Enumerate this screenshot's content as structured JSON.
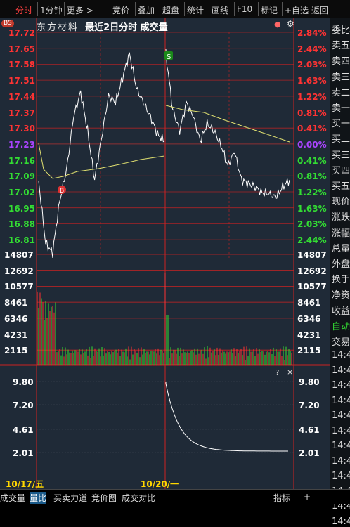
{
  "toolbar": {
    "tabs": [
      "分时",
      "1分钟",
      "更多 >",
      "竞价",
      "叠加",
      "超盘",
      "统计",
      "画线",
      "F10",
      "标记",
      "+自选",
      "返回"
    ],
    "selected": 0
  },
  "header": {
    "badge": "BS",
    "stock": "东方材料",
    "title": "最近2日分时 成交量",
    "icons": [
      "●",
      "⚙"
    ]
  },
  "price_axis": {
    "left": [
      "17.72",
      "17.65",
      "17.58",
      "17.51",
      "17.44",
      "17.37",
      "17.30",
      "17.23",
      "17.16",
      "17.09",
      "17.02",
      "16.95",
      "16.88",
      "16.81"
    ],
    "right": [
      "2.84%",
      "2.44%",
      "2.03%",
      "1.63%",
      "1.22%",
      "0.81%",
      "0.41%",
      "0.00%",
      "0.41%",
      "0.81%",
      "1.22%",
      "1.63%",
      "2.03%",
      "2.44%"
    ]
  },
  "volume_axis": [
    "14807",
    "12692",
    "10577",
    "8461",
    "6346",
    "4231",
    "2115"
  ],
  "indicator_axis": [
    "9.80",
    "7.20",
    "4.61",
    "2.01"
  ],
  "indicator_controls": [
    "?",
    "×"
  ],
  "markers": {
    "b": "B",
    "s": "S"
  },
  "dates": [
    "10/17/五",
    "10/20/一"
  ],
  "bottom_tabs": [
    "成交量",
    "量比",
    "买卖力道",
    "竞价图",
    "成交对比"
  ],
  "bottom_right": [
    "指标",
    "+",
    "-"
  ],
  "right_panel": [
    "委比",
    "卖五",
    "卖四",
    "卖三",
    "卖二",
    "卖一",
    "买一",
    "买二",
    "买三",
    "买四",
    "买五",
    "现价",
    "涨跌",
    "涨幅",
    "总量",
    "外盘",
    "换手",
    "净资",
    "收益",
    "自动",
    "交易",
    "14:4",
    "14:4",
    "14:4",
    "14:4",
    "14:4",
    "14:4",
    "14:4",
    "14:4",
    "14:4",
    "14:4",
    "14:4",
    "14:4"
  ],
  "colors": {
    "up": "#ff3333",
    "down": "#33dd33",
    "flat": "#aa44ff",
    "bg": "#1f2a37",
    "grid": "#cc2222",
    "price": "#ffffff",
    "avg": "#e0e070"
  }
}
